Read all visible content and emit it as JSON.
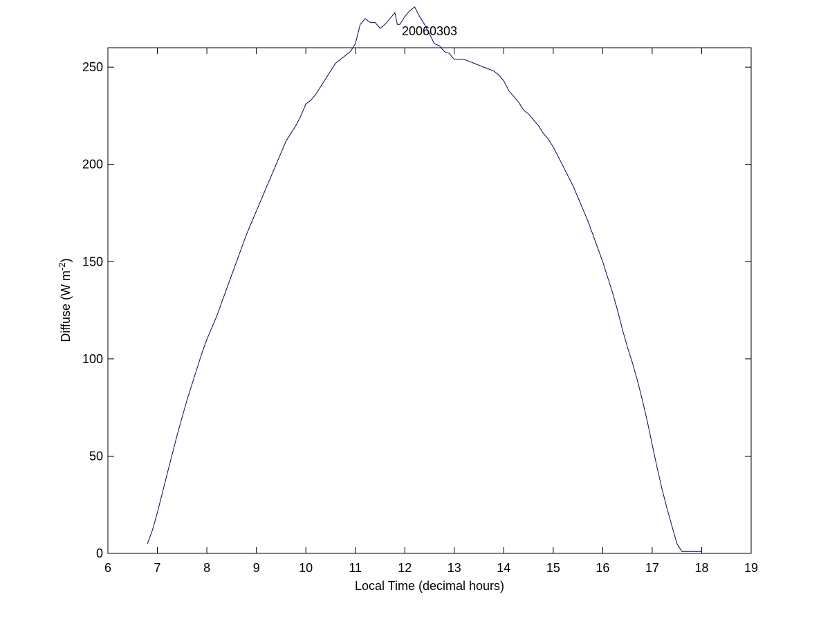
{
  "chart_data": {
    "type": "line",
    "title": "20060303",
    "xlabel": "Local Time (decimal hours)",
    "ylabel": {
      "prefix": "Diffuse (W m",
      "superscript": "-2",
      "suffix": ")"
    },
    "xlim": [
      6,
      19
    ],
    "ylim": [
      0,
      260
    ],
    "xticks": [
      6,
      7,
      8,
      9,
      10,
      11,
      12,
      13,
      14,
      15,
      16,
      17,
      18,
      19
    ],
    "yticks": [
      0,
      50,
      100,
      150,
      200,
      250
    ],
    "grid": false,
    "legend": "none",
    "line_color": "#00008b",
    "series": [
      {
        "x": [
          6.8,
          6.9,
          7.0,
          7.1,
          7.2,
          7.3,
          7.4,
          7.5,
          7.6,
          7.7,
          7.8,
          7.9,
          8.0,
          8.1,
          8.2,
          8.3,
          8.4,
          8.5,
          8.6,
          8.7,
          8.8,
          8.9,
          9.0,
          9.1,
          9.2,
          9.3,
          9.4,
          9.5,
          9.6,
          9.7,
          9.8,
          9.9,
          10.0,
          10.1,
          10.2,
          10.3,
          10.4,
          10.5,
          10.6,
          10.7,
          10.8,
          10.9,
          11.0,
          11.1,
          11.2,
          11.3,
          11.4,
          11.5,
          11.6,
          11.7,
          11.8,
          11.85,
          11.9,
          12.0,
          12.1,
          12.2,
          12.3,
          12.4,
          12.5,
          12.6,
          12.7,
          12.8,
          12.9,
          13.0,
          13.1,
          13.2,
          13.3,
          13.4,
          13.5,
          13.6,
          13.7,
          13.8,
          13.9,
          14.0,
          14.1,
          14.2,
          14.3,
          14.4,
          14.5,
          14.6,
          14.7,
          14.8,
          14.9,
          15.0,
          15.1,
          15.2,
          15.3,
          15.4,
          15.5,
          15.6,
          15.7,
          15.8,
          15.9,
          16.0,
          16.1,
          16.15,
          16.2,
          16.3,
          16.4,
          16.5,
          16.6,
          16.7,
          16.8,
          16.9,
          17.0,
          17.1,
          17.2,
          17.3,
          17.4,
          17.5,
          17.6,
          17.7,
          17.8,
          17.9,
          18.0
        ],
        "y": [
          5,
          12,
          21,
          31,
          41,
          51,
          61,
          70,
          79,
          87,
          95,
          103,
          110,
          116,
          122,
          129,
          136,
          143,
          150,
          157,
          164,
          170,
          176,
          182,
          188,
          194,
          200,
          206,
          212,
          216,
          220,
          225,
          231,
          233,
          236,
          240,
          244,
          248,
          252,
          254,
          256,
          258,
          262,
          272,
          275,
          273,
          273,
          270,
          272,
          275,
          278,
          272,
          272,
          276,
          279,
          281,
          276,
          272,
          267,
          262,
          261,
          258,
          257,
          254,
          254,
          254,
          253,
          252,
          251,
          250,
          249,
          248,
          246,
          243,
          238,
          235,
          232,
          228,
          226,
          223,
          220,
          216,
          213,
          209,
          204,
          199,
          194,
          189,
          183,
          177,
          171,
          164,
          157,
          150,
          142,
          138,
          134,
          125,
          115,
          106,
          98,
          89,
          79,
          68,
          56,
          44,
          33,
          23,
          14,
          5,
          1,
          1,
          1,
          1,
          1
        ]
      }
    ]
  }
}
